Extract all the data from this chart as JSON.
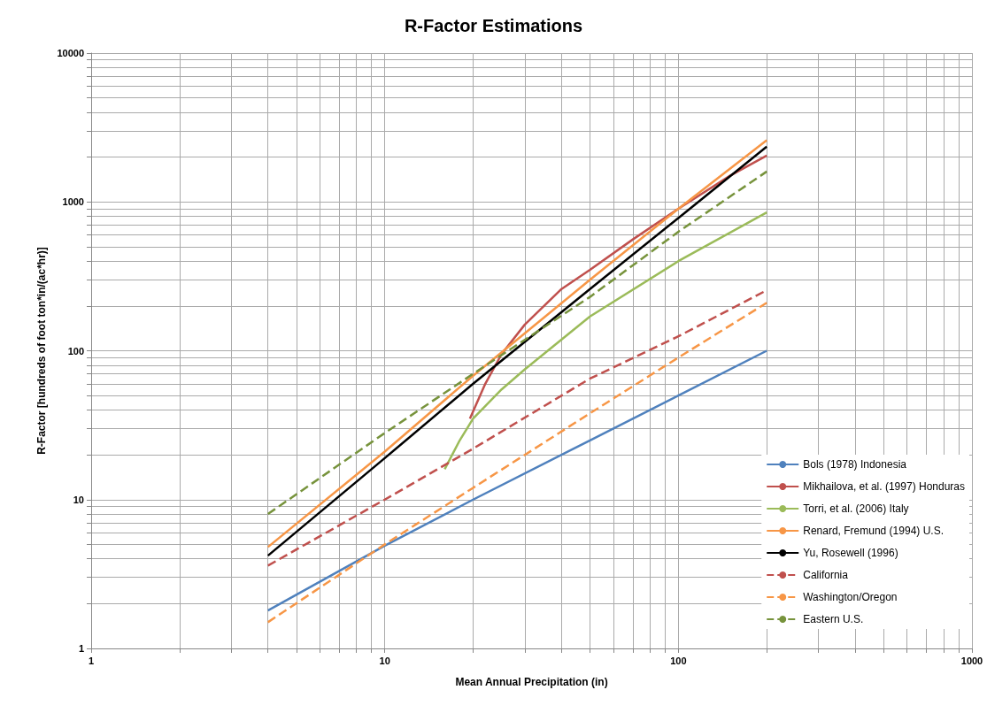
{
  "chart_data": {
    "type": "line",
    "title": "R-Factor Estimations",
    "xlabel": "Mean Annual Precipitation (in)",
    "ylabel": "R-Factor [hundreds of foot ton*in/(ac*hr)]",
    "log": "xy",
    "grid": true,
    "legend": "bottom right",
    "marker": "none",
    "xlim": [
      1,
      1000
    ],
    "ylim": [
      1,
      10000
    ],
    "xticks": [
      1,
      {
        "value": 2,
        "label": null
      },
      {
        "value": 3,
        "label": null
      },
      {
        "value": 4,
        "label": null
      },
      {
        "value": 5,
        "label": null
      },
      {
        "value": 6,
        "label": null
      },
      {
        "value": 7,
        "label": null
      },
      {
        "value": 8,
        "label": null
      },
      {
        "value": 9,
        "label": null
      },
      10,
      {
        "value": 20,
        "label": null
      },
      {
        "value": 30,
        "label": null
      },
      {
        "value": 40,
        "label": null
      },
      {
        "value": 50,
        "label": null
      },
      {
        "value": 60,
        "label": null
      },
      {
        "value": 70,
        "label": null
      },
      {
        "value": 80,
        "label": null
      },
      {
        "value": 90,
        "label": null
      },
      100,
      {
        "value": 200,
        "label": null
      },
      {
        "value": 300,
        "label": null
      },
      {
        "value": 400,
        "label": null
      },
      {
        "value": 500,
        "label": null
      },
      {
        "value": 600,
        "label": null
      },
      {
        "value": 700,
        "label": null
      },
      {
        "value": 800,
        "label": null
      },
      {
        "value": 900,
        "label": null
      },
      1000
    ],
    "yticks": [
      1,
      {
        "value": 2,
        "label": null
      },
      {
        "value": 3,
        "label": null
      },
      {
        "value": 4,
        "label": null
      },
      {
        "value": 5,
        "label": null
      },
      {
        "value": 6,
        "label": null
      },
      {
        "value": 7,
        "label": null
      },
      {
        "value": 8,
        "label": null
      },
      {
        "value": 9,
        "label": null
      },
      10,
      {
        "value": 20,
        "label": null
      },
      {
        "value": 30,
        "label": null
      },
      {
        "value": 40,
        "label": null
      },
      {
        "value": 50,
        "label": null
      },
      {
        "value": 60,
        "label": null
      },
      {
        "value": 70,
        "label": null
      },
      {
        "value": 80,
        "label": null
      },
      {
        "value": 90,
        "label": null
      },
      100,
      {
        "value": 200,
        "label": null
      },
      {
        "value": 300,
        "label": null
      },
      {
        "value": 400,
        "label": null
      },
      {
        "value": 500,
        "label": null
      },
      {
        "value": 600,
        "label": null
      },
      {
        "value": 700,
        "label": null
      },
      {
        "value": 800,
        "label": null
      },
      {
        "value": 900,
        "label": null
      },
      1000,
      {
        "value": 2000,
        "label": null
      },
      {
        "value": 3000,
        "label": null
      },
      {
        "value": 4000,
        "label": null
      },
      {
        "value": 5000,
        "label": null
      },
      {
        "value": 6000,
        "label": null
      },
      {
        "value": 7000,
        "label": null
      },
      {
        "value": 8000,
        "label": null
      },
      {
        "value": 9000,
        "label": null
      },
      10000
    ],
    "series": [
      {
        "name": "Bols (1978) Indonesia",
        "color": "#4f81bd",
        "line_style": "solid",
        "x": [
          4,
          10,
          20,
          50,
          100,
          200
        ],
        "values": [
          1.8,
          4.9,
          10,
          25,
          50,
          100
        ]
      },
      {
        "name": "Mikhailova, et al. (1997) Honduras",
        "color": "#c0504d",
        "line_style": "solid",
        "x": [
          19.5,
          22,
          25,
          30,
          40,
          50,
          70,
          100,
          150,
          200
        ],
        "values": [
          35,
          60,
          95,
          150,
          260,
          350,
          560,
          900,
          1500,
          2050
        ]
      },
      {
        "name": "Torri, et al. (2006) Italy",
        "color": "#9bbb59",
        "line_style": "solid",
        "x": [
          16,
          18,
          20,
          25,
          30,
          50,
          100,
          200
        ],
        "values": [
          16,
          25,
          35,
          55,
          75,
          170,
          400,
          850
        ]
      },
      {
        "name": "Renard, Fremund (1994) U.S.",
        "color": "#f79646",
        "line_style": "solid",
        "x": [
          4,
          10,
          20,
          50,
          100,
          200
        ],
        "values": [
          4.8,
          21,
          68,
          300,
          900,
          2600
        ]
      },
      {
        "name": "Yu, Rosewell (1996)",
        "color": "#000000",
        "line_style": "solid",
        "x": [
          4,
          10,
          20,
          50,
          100,
          200
        ],
        "values": [
          4.2,
          19,
          60,
          260,
          780,
          2350
        ]
      },
      {
        "name": "California",
        "color": "#c0504d",
        "line_style": "dashed",
        "x": [
          4,
          10,
          20,
          50,
          100,
          200
        ],
        "values": [
          3.6,
          10,
          22,
          65,
          125,
          255
        ]
      },
      {
        "name": "Washington/Oregon",
        "color": "#f79646",
        "line_style": "dashed",
        "x": [
          4,
          10,
          20,
          50,
          100,
          200
        ],
        "values": [
          1.5,
          5,
          12,
          38,
          90,
          210
        ]
      },
      {
        "name": "Eastern U.S.",
        "color": "#77933c",
        "line_style": "dashed",
        "x": [
          4,
          10,
          20,
          50,
          100,
          200
        ],
        "values": [
          8,
          28,
          70,
          230,
          630,
          1600
        ]
      }
    ]
  }
}
